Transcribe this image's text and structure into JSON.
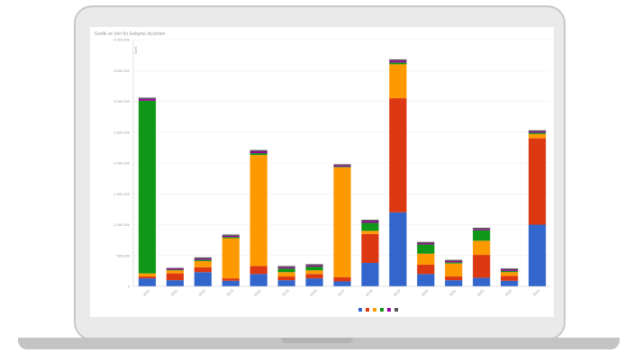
{
  "chart_data": {
    "type": "bar",
    "stacked": true,
    "title": "Grafik ve Veri för Gelişme  ölçümleri",
    "ylabel": "Adet",
    "ylim": [
      0,
      4000
    ],
    "yticks": [
      0,
      500,
      1000,
      1500,
      2000,
      2500,
      3000,
      3500,
      4000
    ],
    "ytick_labels": [
      "0",
      "500.000",
      "1.000.000",
      "1.500.000",
      "2.000.000",
      "2.500.000",
      "3.000.000",
      "3.500.000",
      "4.000.000"
    ],
    "categories": [
      "2010",
      "2011",
      "2012",
      "2013",
      "2014",
      "2015",
      "2016",
      "2017",
      "2018",
      "2019",
      "2020",
      "2021",
      "2022",
      "2023",
      "2024"
    ],
    "grid": true,
    "legend_position": "bottom",
    "series": [
      {
        "color": "#3366cc",
        "values": [
          130,
          100,
          230,
          90,
          200,
          100,
          130,
          80,
          380,
          1200,
          200,
          100,
          140,
          90,
          1000
        ]
      },
      {
        "color": "#dc3912",
        "values": [
          30,
          110,
          80,
          40,
          130,
          60,
          70,
          70,
          470,
          1850,
          150,
          60,
          370,
          80,
          1400
        ]
      },
      {
        "color": "#ff9900",
        "values": [
          50,
          50,
          100,
          650,
          1800,
          70,
          60,
          1780,
          50,
          550,
          180,
          210,
          230,
          60,
          70
        ]
      },
      {
        "color": "#109618",
        "values": [
          2800,
          10,
          20,
          20,
          30,
          60,
          60,
          10,
          130,
          30,
          150,
          20,
          170,
          20,
          20
        ]
      },
      {
        "color": "#990099",
        "values": [
          30,
          20,
          20,
          20,
          30,
          20,
          20,
          20,
          30,
          30,
          20,
          20,
          20,
          20,
          20
        ]
      },
      {
        "color": "#555555",
        "values": [
          20,
          10,
          20,
          20,
          20,
          20,
          20,
          20,
          20,
          20,
          20,
          20,
          20,
          20,
          20
        ]
      }
    ]
  }
}
